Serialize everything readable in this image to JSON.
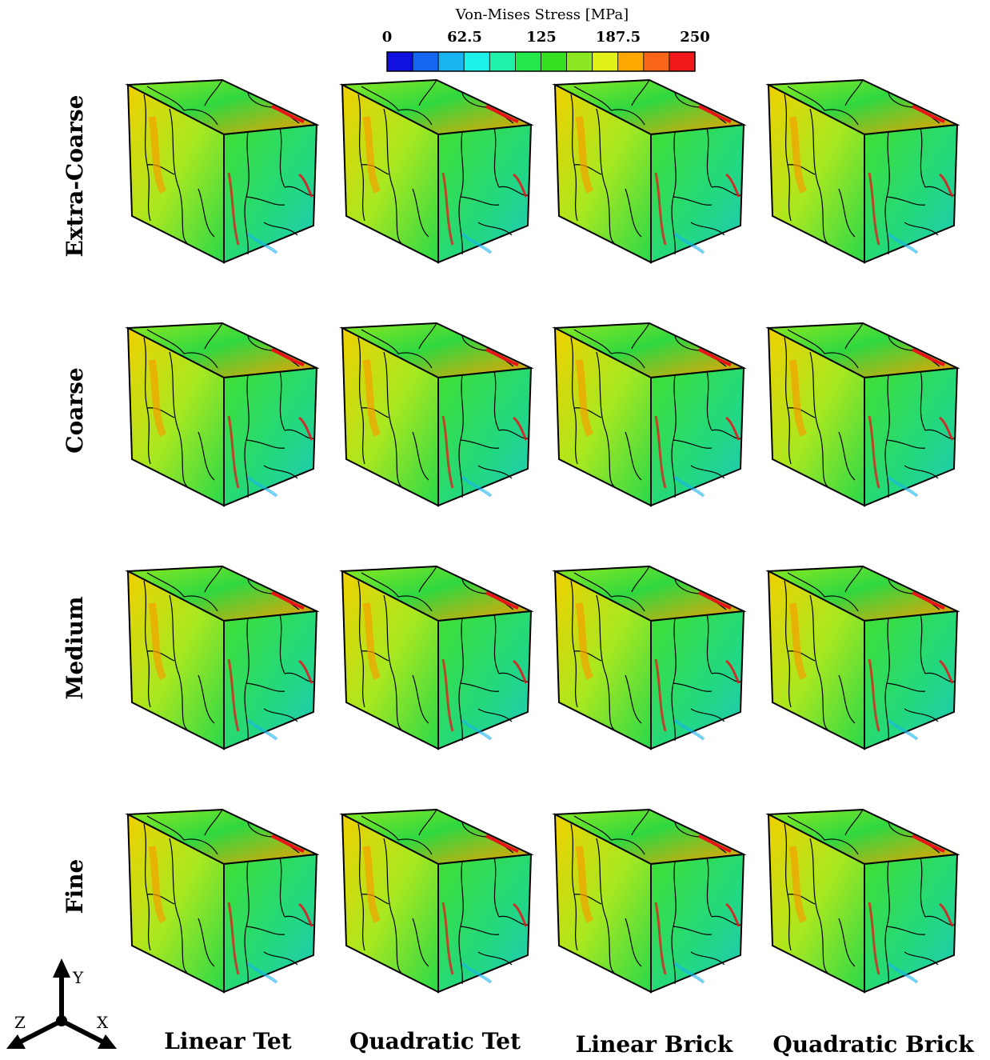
{
  "colorbar": {
    "title": "Von-Mises Stress [MPa]",
    "ticks": [
      "0",
      "62.5",
      "125",
      "187.5",
      "250"
    ],
    "colors": [
      "#1010e0",
      "#1466f0",
      "#18b4f0",
      "#1cf0e8",
      "#20f0a8",
      "#22e84c",
      "#36e020",
      "#8ce820",
      "#e0f018",
      "#fca800",
      "#f86418",
      "#f01818"
    ]
  },
  "rows": [
    "Extra-Coarse",
    "Coarse",
    "Medium",
    "Fine"
  ],
  "columns": [
    "Linear Tet",
    "Quadratic Tet",
    "Linear Brick",
    "Quadratic Brick"
  ],
  "axes": {
    "x": "X",
    "y": "Y",
    "z": "Z"
  }
}
